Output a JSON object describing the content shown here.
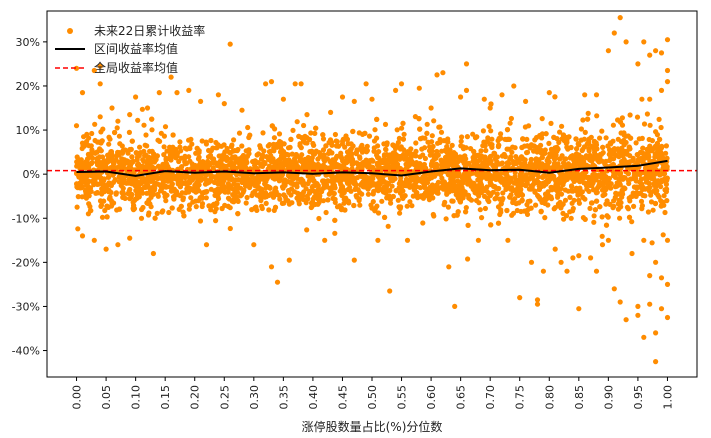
{
  "chart_data": {
    "type": "scatter",
    "xlabel": "涨停股数量占比(%)分位数",
    "ylabel": "",
    "xlim": [
      -0.05,
      1.05
    ],
    "ylim": [
      -46,
      37
    ],
    "x_ticks": [
      0.0,
      0.05,
      0.1,
      0.15,
      0.2,
      0.25,
      0.3,
      0.35,
      0.4,
      0.45,
      0.5,
      0.55,
      0.6,
      0.65,
      0.7,
      0.75,
      0.8,
      0.85,
      0.9,
      0.95,
      1.0
    ],
    "x_tick_labels": [
      "0.00",
      "0.05",
      "0.10",
      "0.15",
      "0.20",
      "0.25",
      "0.30",
      "0.35",
      "0.40",
      "0.45",
      "0.50",
      "0.55",
      "0.60",
      "0.65",
      "0.70",
      "0.75",
      "0.80",
      "0.85",
      "0.90",
      "0.95",
      "1.00"
    ],
    "y_ticks": [
      -40,
      -30,
      -20,
      -10,
      0,
      10,
      20,
      30
    ],
    "y_tick_labels": [
      "-40%",
      "-30%",
      "-20%",
      "-10%",
      "0%",
      "10%",
      "20%",
      "30%"
    ],
    "grid": false,
    "legend_position": "top-left",
    "series": [
      {
        "name": "未来22日累计收益率",
        "kind": "scatter",
        "color": "#ff8c00",
        "points": [
          [
            0.0,
            24
          ],
          [
            0.0,
            11
          ],
          [
            0.01,
            -14
          ],
          [
            0.01,
            18.5
          ],
          [
            0.02,
            -9
          ],
          [
            0.03,
            -15
          ],
          [
            0.03,
            23.5
          ],
          [
            0.04,
            24.5
          ],
          [
            0.04,
            20.5
          ],
          [
            0.04,
            13
          ],
          [
            0.05,
            -17
          ],
          [
            0.06,
            15
          ],
          [
            0.07,
            -16
          ],
          [
            0.07,
            12
          ],
          [
            0.09,
            -14.5
          ],
          [
            0.09,
            13.5
          ],
          [
            0.1,
            17.5
          ],
          [
            0.11,
            -10
          ],
          [
            0.12,
            15
          ],
          [
            0.13,
            -18
          ],
          [
            0.14,
            18.5
          ],
          [
            0.16,
            22
          ],
          [
            0.17,
            18.5
          ],
          [
            0.19,
            19
          ],
          [
            0.21,
            16.5
          ],
          [
            0.22,
            -16
          ],
          [
            0.24,
            18
          ],
          [
            0.25,
            16
          ],
          [
            0.26,
            29.5
          ],
          [
            0.28,
            14.5
          ],
          [
            0.3,
            -16
          ],
          [
            0.32,
            20.5
          ],
          [
            0.33,
            -21
          ],
          [
            0.33,
            21
          ],
          [
            0.34,
            -24.5
          ],
          [
            0.35,
            17
          ],
          [
            0.36,
            -19.5
          ],
          [
            0.37,
            20.5
          ],
          [
            0.38,
            20.5
          ],
          [
            0.39,
            13.5
          ],
          [
            0.42,
            -15
          ],
          [
            0.43,
            14
          ],
          [
            0.45,
            17.5
          ],
          [
            0.47,
            16.5
          ],
          [
            0.47,
            -19.5
          ],
          [
            0.49,
            20.5
          ],
          [
            0.5,
            17
          ],
          [
            0.51,
            -15
          ],
          [
            0.53,
            -26.5
          ],
          [
            0.54,
            19
          ],
          [
            0.55,
            20.5
          ],
          [
            0.56,
            -15
          ],
          [
            0.58,
            19.5
          ],
          [
            0.6,
            15
          ],
          [
            0.61,
            22.5
          ],
          [
            0.62,
            23
          ],
          [
            0.63,
            -21
          ],
          [
            0.64,
            -30
          ],
          [
            0.65,
            17.5
          ],
          [
            0.66,
            19
          ],
          [
            0.66,
            25
          ],
          [
            0.68,
            -15
          ],
          [
            0.69,
            17
          ],
          [
            0.7,
            15
          ],
          [
            0.72,
            18
          ],
          [
            0.73,
            -15
          ],
          [
            0.74,
            20
          ],
          [
            0.75,
            -28
          ],
          [
            0.76,
            16.5
          ],
          [
            0.77,
            -20
          ],
          [
            0.78,
            -28.5
          ],
          [
            0.78,
            -29.5
          ],
          [
            0.79,
            -22
          ],
          [
            0.8,
            18.5
          ],
          [
            0.81,
            -17
          ],
          [
            0.82,
            -20
          ],
          [
            0.83,
            -22
          ],
          [
            0.84,
            -19
          ],
          [
            0.85,
            -18.5
          ],
          [
            0.85,
            -30.5
          ],
          [
            0.86,
            18
          ],
          [
            0.87,
            -19
          ],
          [
            0.88,
            -22
          ],
          [
            0.88,
            18
          ],
          [
            0.89,
            -16
          ],
          [
            0.9,
            -15
          ],
          [
            0.9,
            28
          ],
          [
            0.91,
            -26
          ],
          [
            0.91,
            32
          ],
          [
            0.92,
            35.5
          ],
          [
            0.92,
            -29
          ],
          [
            0.93,
            30
          ],
          [
            0.93,
            -33
          ],
          [
            0.94,
            -18
          ],
          [
            0.95,
            -30
          ],
          [
            0.95,
            -32
          ],
          [
            0.95,
            25
          ],
          [
            0.96,
            -37
          ],
          [
            0.96,
            30
          ],
          [
            0.96,
            -15
          ],
          [
            0.97,
            27
          ],
          [
            0.97,
            -23
          ],
          [
            0.97,
            -29.5
          ],
          [
            0.98,
            -42.5
          ],
          [
            0.98,
            -36
          ],
          [
            0.98,
            28
          ],
          [
            0.99,
            -30.5
          ],
          [
            0.99,
            27.5
          ],
          [
            0.99,
            -23.5
          ],
          [
            1.0,
            30.5
          ],
          [
            1.0,
            -32.5
          ],
          [
            1.0,
            -25
          ],
          [
            1.0,
            23.5
          ],
          [
            1.0,
            -15
          ],
          [
            1.0,
            21
          ],
          [
            0.99,
            19
          ],
          [
            0.98,
            -20
          ],
          [
            0.97,
            17
          ]
        ],
        "cloud": {
          "x_range": [
            0.0,
            1.0
          ],
          "count": 4200,
          "spread": 3.8,
          "seed": 7
        }
      },
      {
        "name": "区间收益率均值",
        "kind": "line",
        "color": "#000000",
        "x": [
          0.0,
          0.05,
          0.1,
          0.15,
          0.2,
          0.25,
          0.3,
          0.35,
          0.4,
          0.45,
          0.5,
          0.55,
          0.6,
          0.65,
          0.7,
          0.75,
          0.8,
          0.85,
          0.9,
          0.95,
          1.0
        ],
        "y": [
          0.5,
          0.6,
          -0.4,
          0.7,
          0.3,
          0.6,
          0.2,
          0.4,
          0.1,
          0.4,
          0.2,
          -0.3,
          0.6,
          1.3,
          0.9,
          1.0,
          0.3,
          1.2,
          1.5,
          1.9,
          3.0
        ]
      },
      {
        "name": "全局收益率均值",
        "kind": "hline",
        "color": "#ff0000",
        "y": 0.8
      }
    ]
  }
}
